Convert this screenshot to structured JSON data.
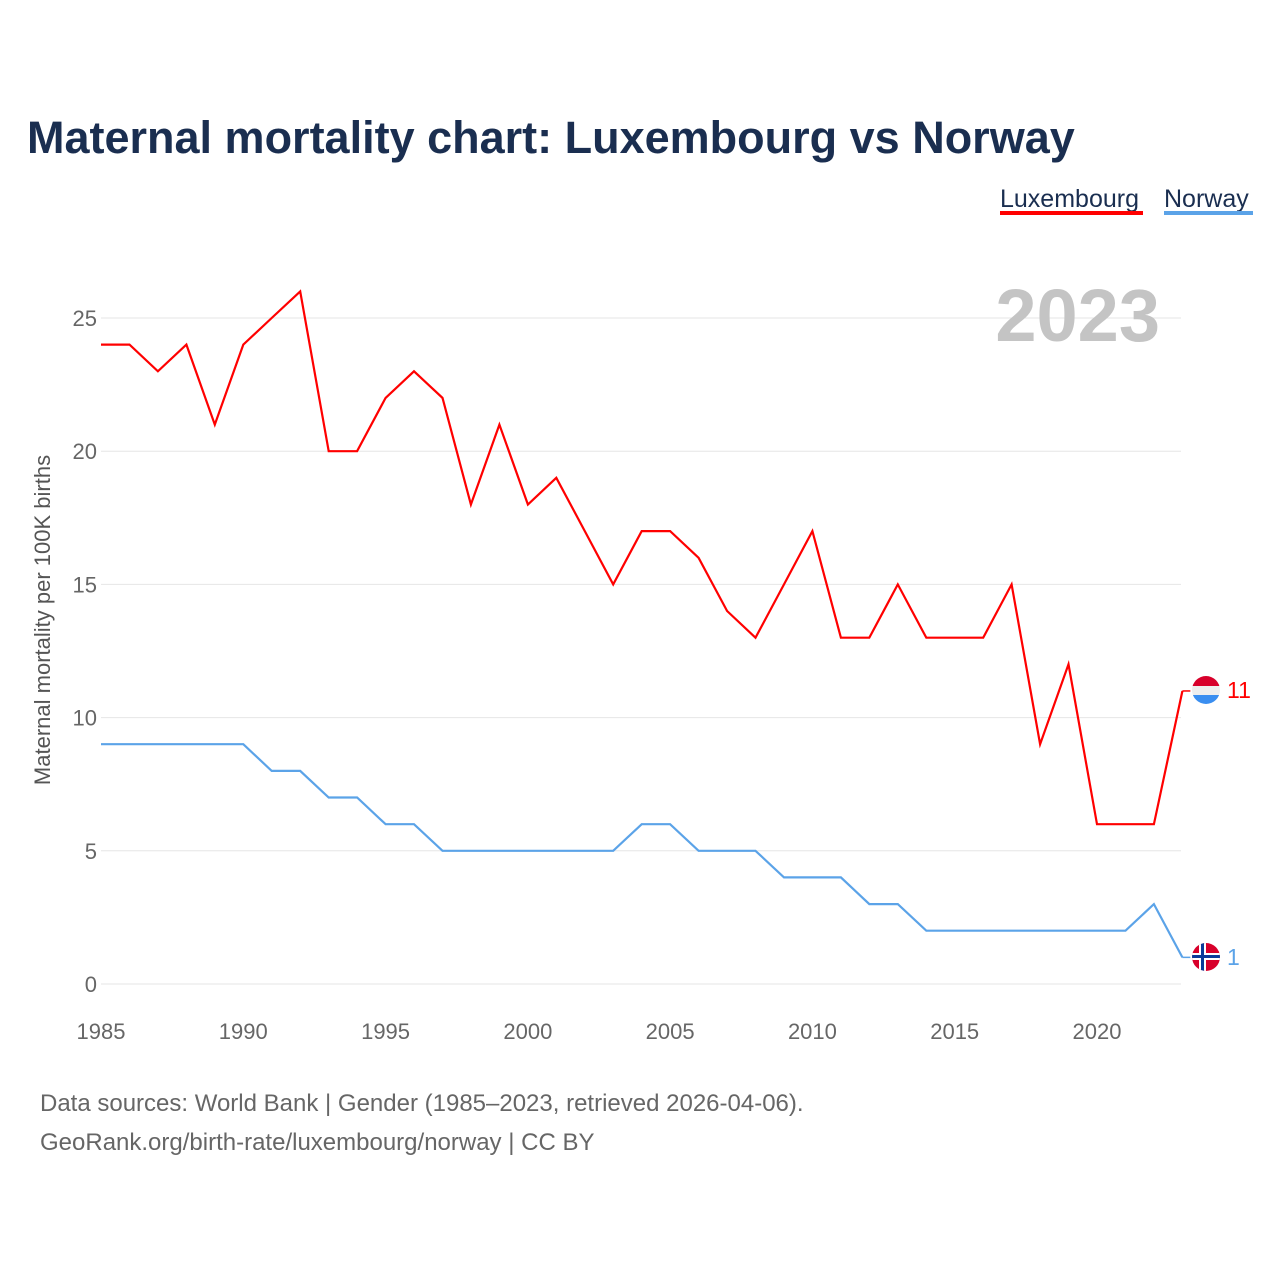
{
  "chart_data": {
    "type": "line",
    "title": "Maternal mortality chart: Luxembourg vs Norway",
    "ylabel": "Maternal mortality per 100K births",
    "xlabel": "",
    "year_label": "2023",
    "x": [
      1985,
      1986,
      1987,
      1988,
      1989,
      1990,
      1991,
      1992,
      1993,
      1994,
      1995,
      1996,
      1997,
      1998,
      1999,
      2000,
      2001,
      2002,
      2003,
      2004,
      2005,
      2006,
      2007,
      2008,
      2009,
      2010,
      2011,
      2012,
      2013,
      2014,
      2015,
      2016,
      2017,
      2018,
      2019,
      2020,
      2021,
      2022,
      2023
    ],
    "xlim": [
      1985,
      2023
    ],
    "ylim": [
      0,
      27
    ],
    "xticks": [
      "1985",
      "1990",
      "1995",
      "2000",
      "2005",
      "2010",
      "2015",
      "2020"
    ],
    "yticks": [
      "0",
      "5",
      "10",
      "15",
      "20",
      "25"
    ],
    "grid": true,
    "legend_position": "top-right",
    "series": [
      {
        "name": "Luxembourg",
        "color": "#ff0000",
        "end_label": "11",
        "values": [
          24,
          24,
          23,
          24,
          21,
          24,
          25,
          26,
          20,
          20,
          22,
          23,
          22,
          18,
          21,
          18,
          19,
          17,
          15,
          17,
          17,
          16,
          14,
          13,
          15,
          17,
          13,
          13,
          15,
          13,
          13,
          13,
          15,
          9,
          12,
          6,
          6,
          6,
          11
        ]
      },
      {
        "name": "Norway",
        "color": "#5ba3e8",
        "end_label": "1",
        "values": [
          9,
          9,
          9,
          9,
          9,
          9,
          8,
          8,
          7,
          7,
          6,
          6,
          5,
          5,
          5,
          5,
          5,
          5,
          5,
          6,
          6,
          5,
          5,
          5,
          4,
          4,
          4,
          3,
          3,
          2,
          2,
          2,
          2,
          2,
          2,
          2,
          2,
          3,
          1
        ]
      }
    ]
  },
  "footer": {
    "line1": "Data sources: World Bank | Gender (1985–2023, retrieved 2026-04-06).",
    "line2": "GeoRank.org/birth-rate/luxembourg/norway | CC BY"
  }
}
